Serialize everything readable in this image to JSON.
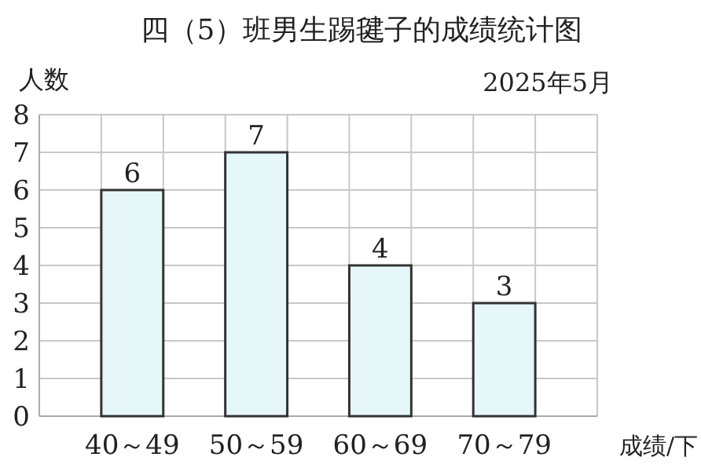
{
  "chart_data": {
    "type": "bar",
    "title": "四（5）班男生踢毽子的成绩统计图",
    "ylabel": "人数",
    "xlabel": "成绩/下",
    "annotations": [
      "2025年5月"
    ],
    "categories": [
      "40～49",
      "50～59",
      "60～69",
      "70～79"
    ],
    "values": [
      6,
      7,
      4,
      3
    ],
    "color": "#e6f7fa",
    "ylim": [
      0,
      8
    ],
    "yticks": [
      0,
      1,
      2,
      3,
      4,
      5,
      6,
      7,
      8
    ],
    "grid": true,
    "data_labels": true
  }
}
